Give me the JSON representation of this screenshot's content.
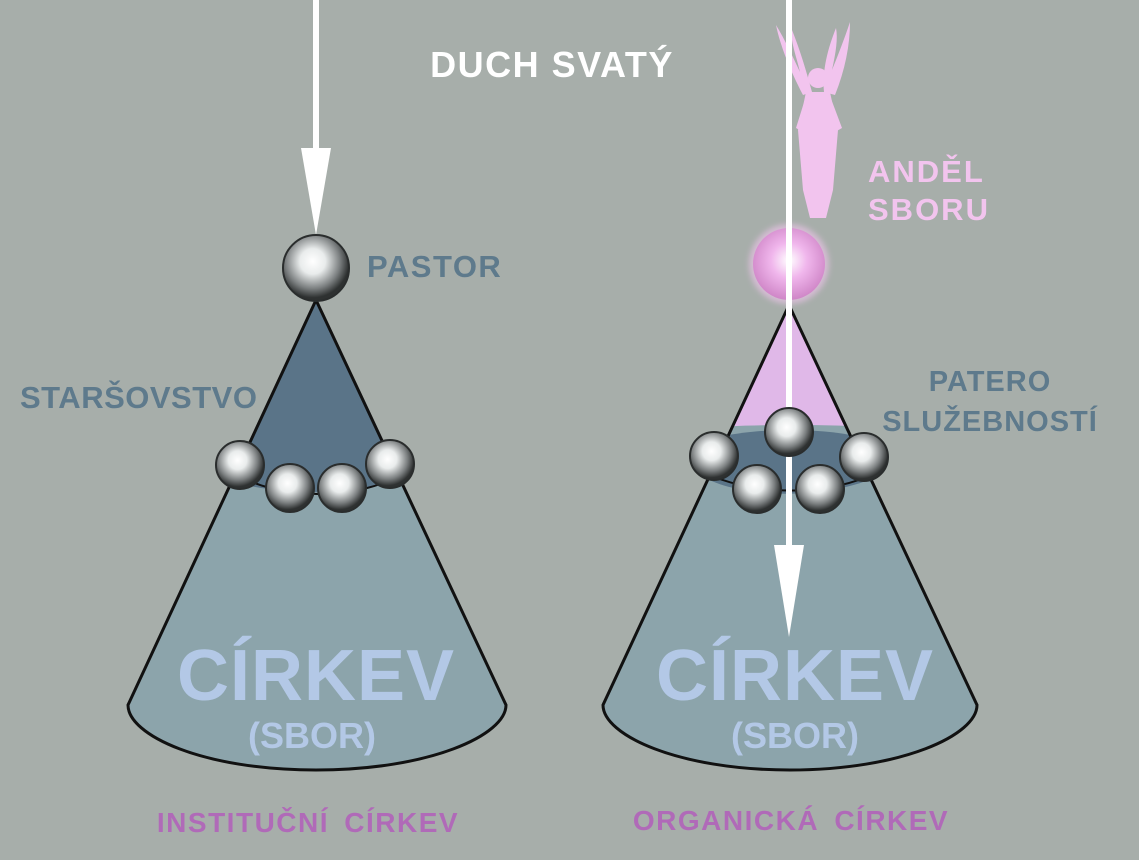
{
  "top_label": "DUCH SVATÝ",
  "left": {
    "pastor": "PASTOR",
    "elders": "STARŠOVSTVO",
    "church": "CÍRKEV",
    "sbor": "(SBOR)",
    "caption": "INSTITUČNÍ CÍRKEV"
  },
  "right": {
    "angel_line1": "ANDĚL",
    "angel_line2": "SBORU",
    "ministries_line1": "PATERO",
    "ministries_line2": "SLUŽEBNOSTÍ",
    "church": "CÍRKEV",
    "sbor": "(SBOR)",
    "caption": "ORGANICKÁ CÍRKEV"
  },
  "colors": {
    "background": "#a7aeaa",
    "cone_body": "#8ca4ab",
    "leadership_blue": "#5a7488",
    "leadership_pink": "#e0b8e8",
    "church_text": "#b3c8e6",
    "label_blue": "#5e7a8c",
    "caption_purple": "#b06ab8",
    "angel_pink": "#f2c4ee",
    "arrow": "#ffffff"
  },
  "icons": [
    "down-arrow-icon",
    "sphere-icon",
    "angel-figure-icon"
  ]
}
